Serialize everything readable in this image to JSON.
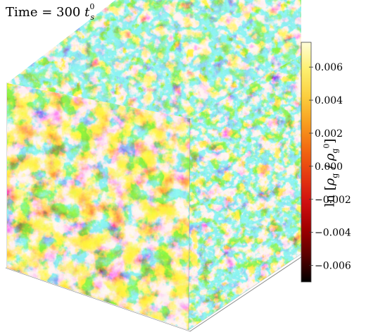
{
  "title": {
    "prefix": "Time = 300 ",
    "symbol": "t",
    "subscript": "s",
    "superscript": "0"
  },
  "colorbar": {
    "label_prefix": "ln [",
    "label_symbol": "ρ",
    "label_sub": "g",
    "label_mid": " / ",
    "label_symbol2": "ρ",
    "label_sub2": "g",
    "label_sup2": "0",
    "label_suffix": "]",
    "ticks": [
      "0.006",
      "0.004",
      "0.002",
      "0.000",
      "−0.002",
      "−0.004",
      "−0.006"
    ],
    "colors": [
      "#000000",
      "#5a0000",
      "#a00000",
      "#d01010",
      "#e53a10",
      "#f26a10",
      "#f8a020",
      "#fbd040",
      "#fdf070",
      "#fffdd8"
    ]
  },
  "chart_data": {
    "type": "heatmap",
    "title": "Time = 300 t_s^0",
    "colorbar_label": "ln [ρ_g / ρ_g^0]",
    "colorbar_range": [
      -0.007,
      0.0075
    ],
    "colorbar_ticks": [
      -0.006,
      -0.004,
      -0.002,
      0.0,
      0.002,
      0.004,
      0.006
    ],
    "colorbar_tick_labels": [
      "−0.006",
      "−0.004",
      "−0.002",
      "0.000",
      "0.002",
      "0.004",
      "0.006"
    ],
    "colormap": "afmhot-like (black → dark red → red → orange → yellow → pale yellow)",
    "rendering": "3D volume cube of density fluctuations with cyan overlay",
    "overlay_color": "#3fe8e8"
  }
}
